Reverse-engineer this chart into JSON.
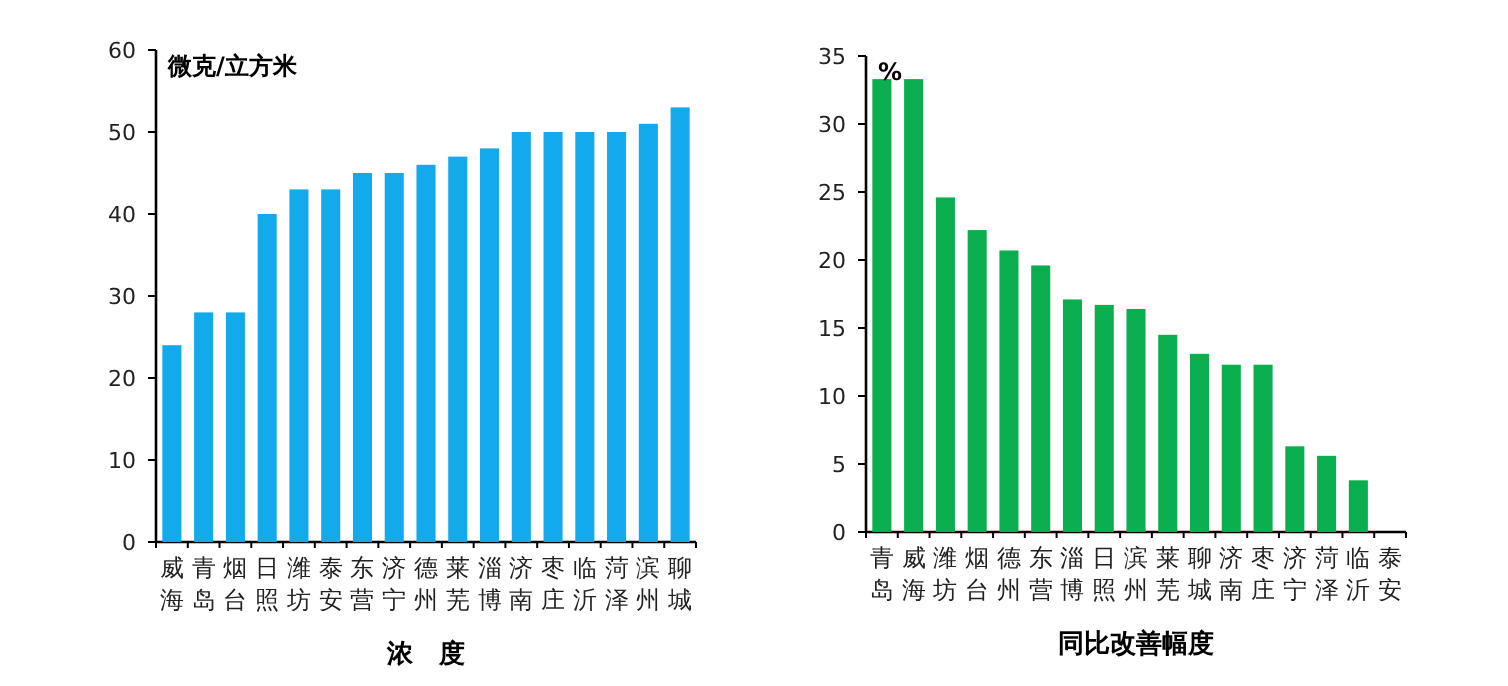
{
  "chart_data": [
    {
      "type": "bar",
      "ylabel": "微克/立方米",
      "xlabel": "浓　度",
      "categories": [
        "威海",
        "青岛",
        "烟台",
        "日照",
        "潍坊",
        "泰安",
        "东营",
        "济宁",
        "德州",
        "莱芜",
        "淄博",
        "济南",
        "枣庄",
        "临沂",
        "菏泽",
        "滨州",
        "聊城"
      ],
      "values": [
        24,
        28,
        28,
        40,
        43,
        43,
        45,
        45,
        46,
        47,
        48,
        50,
        50,
        50,
        50,
        51,
        53
      ],
      "color": "#12aaeb",
      "ylim": [
        0,
        60
      ],
      "yticks": [
        0,
        10,
        20,
        30,
        40,
        50,
        60
      ],
      "grid": false,
      "legend": false
    },
    {
      "type": "bar",
      "ylabel": "%",
      "xlabel": "同比改善幅度",
      "categories": [
        "青岛",
        "威海",
        "潍坊",
        "烟台",
        "德州",
        "东营",
        "淄博",
        "日照",
        "滨州",
        "莱芜",
        "聊城",
        "济南",
        "枣庄",
        "济宁",
        "菏泽",
        "临沂",
        "泰安"
      ],
      "values": [
        33.3,
        33.3,
        24.6,
        22.2,
        20.7,
        19.6,
        17.1,
        16.7,
        16.4,
        14.5,
        13.1,
        12.3,
        12.3,
        6.3,
        5.6,
        3.8,
        0
      ],
      "color": "#0aae4e",
      "ylim": [
        0,
        35
      ],
      "yticks": [
        0,
        5,
        10,
        15,
        20,
        25,
        30,
        35
      ],
      "grid": false,
      "legend": false
    }
  ]
}
